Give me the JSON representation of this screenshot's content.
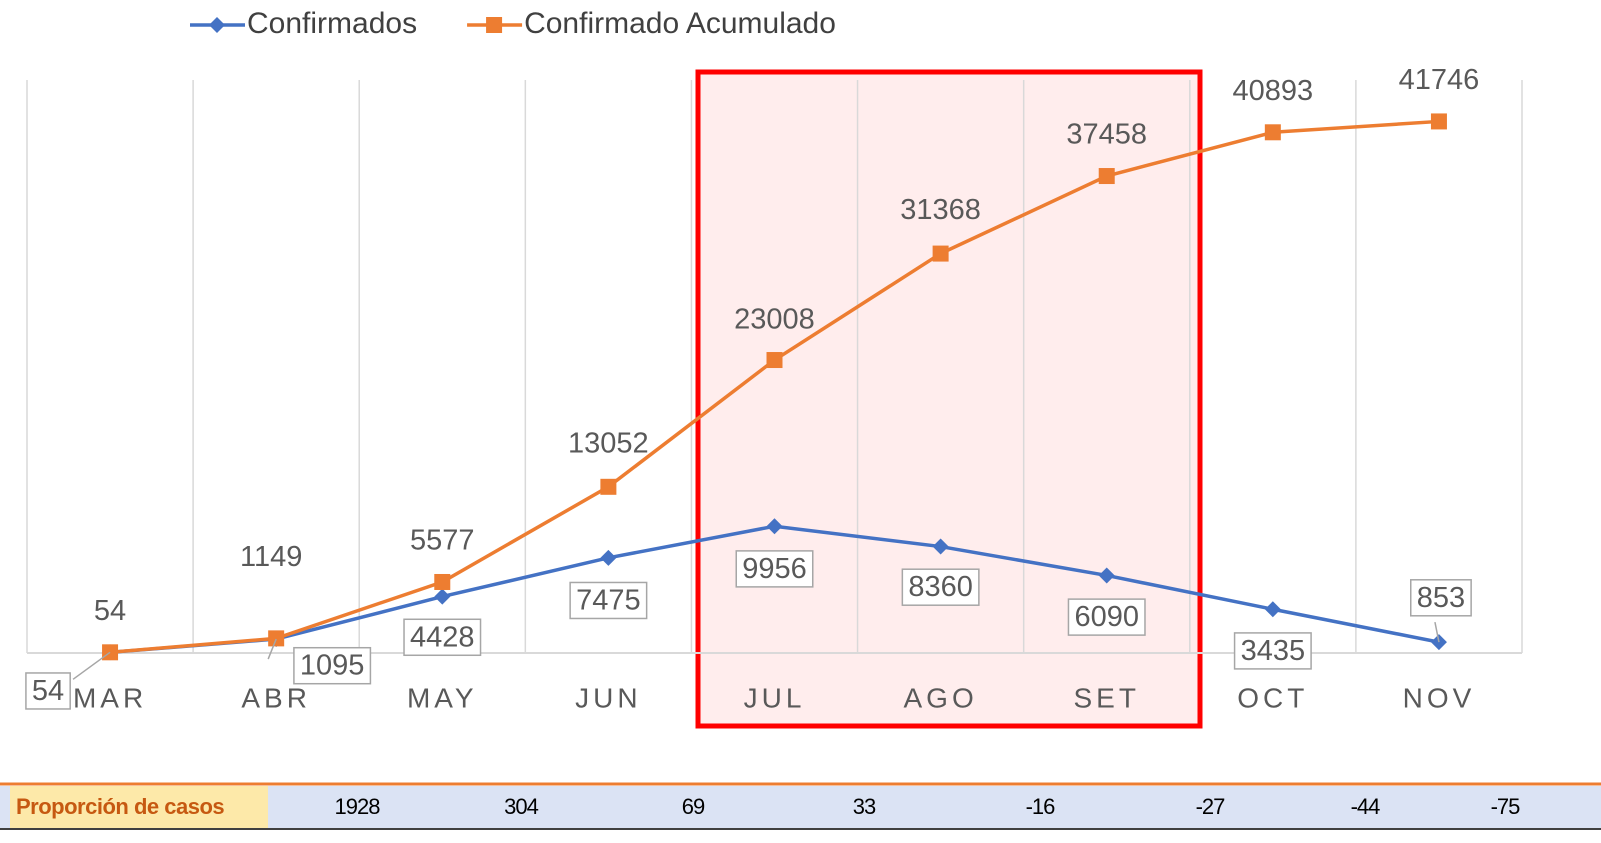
{
  "chart_data": {
    "type": "line",
    "categories": [
      "MAR",
      "ABR",
      "MAY",
      "JUN",
      "JUL",
      "AGO",
      "SET",
      "OCT",
      "NOV"
    ],
    "series": [
      {
        "name": "Confirmados",
        "color": "#4472c4",
        "values": [
          54,
          1095,
          4428,
          7475,
          9956,
          8360,
          6090,
          3435,
          853
        ]
      },
      {
        "name": "Confirmado Acumulado",
        "color": "#ed7d31",
        "values": [
          54,
          1149,
          5577,
          13052,
          23008,
          31368,
          37458,
          40893,
          41746
        ]
      }
    ],
    "ylim": [
      0,
      45000
    ],
    "grid": true,
    "legend": "top"
  },
  "table": {
    "header": "Proporción de casos",
    "values": [
      "1928",
      "304",
      "69",
      "33",
      "-16",
      "-27",
      "-44",
      "-75"
    ]
  }
}
